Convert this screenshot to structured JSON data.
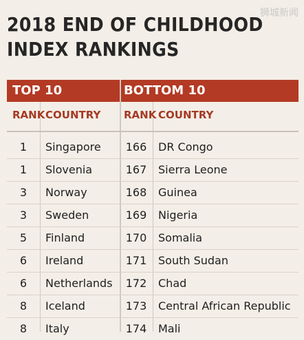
{
  "watermark": "狮城新闻",
  "title": {
    "line1": "2018 END OF CHILDHOOD",
    "line2": "INDEX RANKINGS"
  },
  "sections": {
    "top": "TOP 10",
    "bottom": "BOTTOM 10"
  },
  "headers": {
    "rank": "RANK",
    "country": "COUNTRY"
  },
  "rows": [
    {
      "top_rank": "1",
      "top_country": "Singapore",
      "bottom_rank": "166",
      "bottom_country": "DR Congo"
    },
    {
      "top_rank": "1",
      "top_country": "Slovenia",
      "bottom_rank": "167",
      "bottom_country": "Sierra Leone"
    },
    {
      "top_rank": "3",
      "top_country": "Norway",
      "bottom_rank": "168",
      "bottom_country": "Guinea"
    },
    {
      "top_rank": "3",
      "top_country": "Sweden",
      "bottom_rank": "169",
      "bottom_country": "Nigeria"
    },
    {
      "top_rank": "5",
      "top_country": "Finland",
      "bottom_rank": "170",
      "bottom_country": "Somalia"
    },
    {
      "top_rank": "6",
      "top_country": "Ireland",
      "bottom_rank": "171",
      "bottom_country": "South Sudan"
    },
    {
      "top_rank": "6",
      "top_country": "Netherlands",
      "bottom_rank": "172",
      "bottom_country": "Chad"
    },
    {
      "top_rank": "8",
      "top_country": "Iceland",
      "bottom_rank": "173",
      "bottom_country": "Central African Republic"
    },
    {
      "top_rank": "8",
      "top_country": "Italy",
      "bottom_rank": "174",
      "bottom_country": "Mali"
    }
  ],
  "colors": {
    "accent": "#b33a24",
    "header_text": "#a53a24",
    "background": "#f3eee7"
  }
}
